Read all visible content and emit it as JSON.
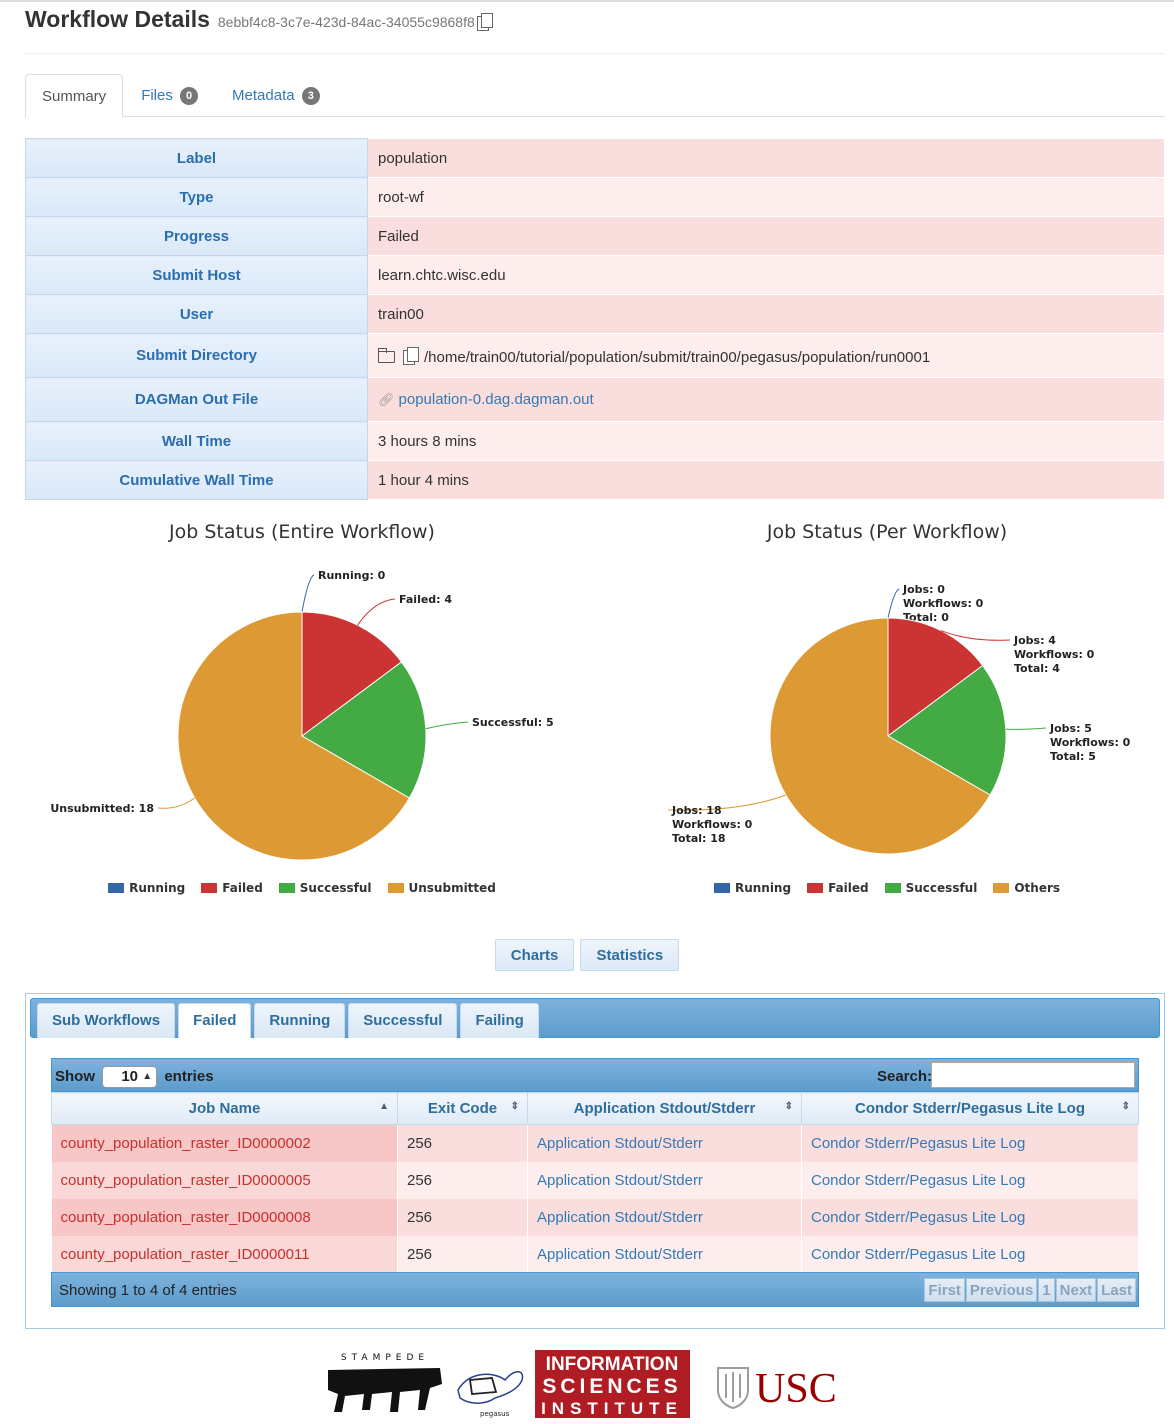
{
  "header": {
    "title": "Workflow Details",
    "workflow_id": "8ebbf4c8-3c7e-423d-84ac-34055c9868f8"
  },
  "tabs": [
    {
      "label": "Summary",
      "badge": ""
    },
    {
      "label": "Files",
      "badge": "0"
    },
    {
      "label": "Metadata",
      "badge": "3"
    }
  ],
  "summary": {
    "label_key": "Label",
    "label": "population",
    "type_key": "Type",
    "type": "root-wf",
    "progress_key": "Progress",
    "progress": "Failed",
    "host_key": "Submit Host",
    "host": "learn.chtc.wisc.edu",
    "user_key": "User",
    "user": "train00",
    "dir_key": "Submit Directory",
    "dir": "/home/train00/tutorial/population/submit/train00/pegasus/population/run0001",
    "dagman_key": "DAGMan Out File",
    "dagman": "population-0.dag.dagman.out",
    "wall_key": "Wall Time",
    "wall": "3 hours 8 mins",
    "cwall_key": "Cumulative Wall Time",
    "cwall": "1 hour 4 mins"
  },
  "chart_data": [
    {
      "type": "pie",
      "title": "Job Status (Entire Workflow)",
      "categories": [
        "Running",
        "Failed",
        "Successful",
        "Unsubmitted"
      ],
      "values": [
        0,
        4,
        5,
        18
      ],
      "labels": [
        "Running: 0",
        "Failed: 4",
        "Successful: 5",
        "Unsubmitted: 18"
      ],
      "colors": [
        "#3366aa",
        "#cc3333",
        "#44aa44",
        "#dd9933"
      ],
      "legend": "bottom"
    },
    {
      "type": "pie",
      "title": "Job Status (Per Workflow)",
      "categories": [
        "Running",
        "Failed",
        "Successful",
        "Others"
      ],
      "values": [
        0,
        4,
        5,
        18
      ],
      "labels": [
        [
          "Jobs: 0",
          "Workflows: 0",
          "Total: 0"
        ],
        [
          "Jobs: 4",
          "Workflows: 0",
          "Total: 4"
        ],
        [
          "Jobs: 5",
          "Workflows: 0",
          "Total: 5"
        ],
        [
          "Jobs: 18",
          "Workflows: 0",
          "Total: 18"
        ]
      ],
      "colors": [
        "#3366aa",
        "#cc3333",
        "#44aa44",
        "#dd9933"
      ],
      "legend": "bottom"
    }
  ],
  "buttons": {
    "charts": "Charts",
    "statistics": "Statistics"
  },
  "panel_tabs": [
    "Sub Workflows",
    "Failed",
    "Running",
    "Successful",
    "Failing"
  ],
  "table": {
    "show": "Show",
    "length": "10",
    "entries": "entries",
    "search": "Search:",
    "columns": [
      "Job Name",
      "Exit Code",
      "Application Stdout/Stderr",
      "Condor Stderr/Pegasus Lite Log"
    ],
    "rows": [
      [
        "county_population_raster_ID0000002",
        "256",
        "Application Stdout/Stderr",
        "Condor Stderr/Pegasus Lite Log"
      ],
      [
        "county_population_raster_ID0000005",
        "256",
        "Application Stdout/Stderr",
        "Condor Stderr/Pegasus Lite Log"
      ],
      [
        "county_population_raster_ID0000008",
        "256",
        "Application Stdout/Stderr",
        "Condor Stderr/Pegasus Lite Log"
      ],
      [
        "county_population_raster_ID0000011",
        "256",
        "Application Stdout/Stderr",
        "Condor Stderr/Pegasus Lite Log"
      ]
    ],
    "info": "Showing 1 to 4 of 4 entries",
    "pager": [
      "First",
      "Previous",
      "1",
      "Next",
      "Last"
    ]
  },
  "logos": {
    "stampede": "STAMPEDE",
    "pegasus": "pegasus",
    "isi": [
      "INFORMATION",
      "SCIENCES",
      "INSTITUTE"
    ],
    "usc": "USC"
  }
}
